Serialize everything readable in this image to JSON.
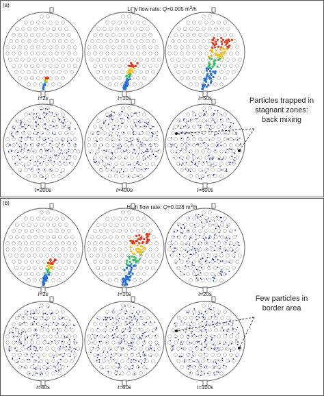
{
  "panels": [
    {
      "label": "(a)",
      "title": {
        "prefix": "Low flow rate: ",
        "var": "Q",
        "value": "=0.005 m",
        "sup": "3",
        "suffix": "/h"
      },
      "frames": [
        {
          "var": "t",
          "time": "=2s"
        },
        {
          "var": "t",
          "time": "=10s"
        },
        {
          "var": "t",
          "time": "=50s"
        },
        {
          "var": "t",
          "time": "=200s"
        },
        {
          "var": "t",
          "time": "=400s"
        },
        {
          "var": "t",
          "time": "=600s"
        }
      ],
      "annotation": [
        "Particles trapped in",
        "stagnant zones:",
        "back mixing"
      ]
    },
    {
      "label": "(b)",
      "title": {
        "prefix": "High flow rate: ",
        "var": "Q",
        "value": "=0.028 m",
        "sup": "3",
        "suffix": "/h"
      },
      "frames": [
        {
          "var": "t",
          "time": "=2s"
        },
        {
          "var": "t",
          "time": "=10s"
        },
        {
          "var": "t",
          "time": "=20s"
        },
        {
          "var": "t",
          "time": "=40s"
        },
        {
          "var": "t",
          "time": "=60s"
        },
        {
          "var": "t",
          "time": "=100s"
        }
      ],
      "annotation": [
        "Few particles in",
        "border area"
      ]
    }
  ]
}
